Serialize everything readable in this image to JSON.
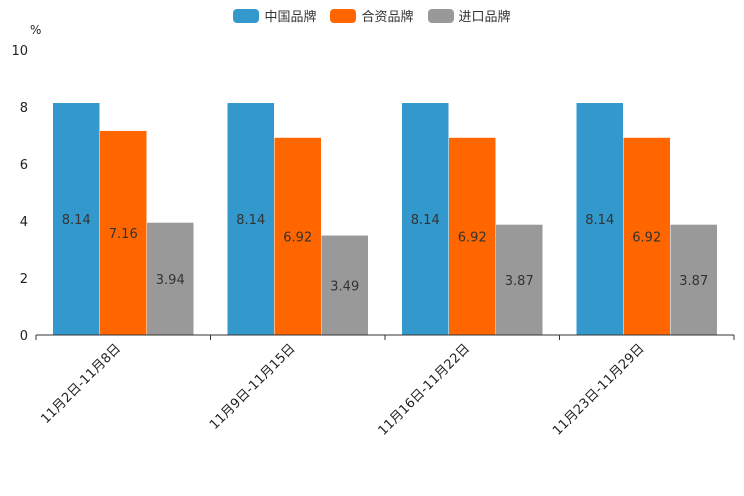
{
  "chart_data": {
    "type": "bar",
    "unit": "%",
    "categories": [
      "11月2日-11月8日",
      "11月9日-11月15日",
      "11月16日-11月22日",
      "11月23日-11月29日"
    ],
    "series": [
      {
        "name": "中国品牌",
        "color": "#3399cc",
        "values": [
          8.14,
          8.14,
          8.14,
          8.14
        ]
      },
      {
        "name": "合资品牌",
        "color": "#ff6600",
        "values": [
          7.16,
          6.92,
          6.92,
          6.92
        ]
      },
      {
        "name": "进口品牌",
        "color": "#999999",
        "values": [
          3.94,
          3.49,
          3.87,
          3.87
        ]
      }
    ],
    "ylim": [
      0,
      10
    ],
    "yticks": [
      "0",
      "2",
      "4",
      "6",
      "8",
      "10"
    ],
    "title": "",
    "xlabel": "",
    "ylabel": ""
  }
}
